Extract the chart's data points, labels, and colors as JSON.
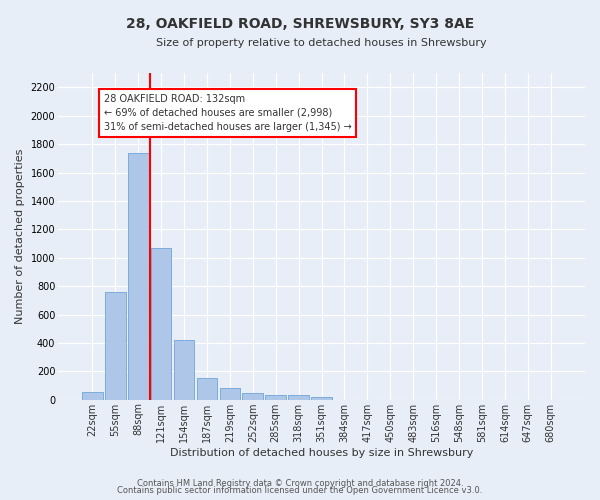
{
  "title": "28, OAKFIELD ROAD, SHREWSBURY, SY3 8AE",
  "subtitle": "Size of property relative to detached houses in Shrewsbury",
  "xlabel": "Distribution of detached houses by size in Shrewsbury",
  "ylabel": "Number of detached properties",
  "footnote1": "Contains HM Land Registry data © Crown copyright and database right 2024.",
  "footnote2": "Contains public sector information licensed under the Open Government Licence v3.0.",
  "bin_labels": [
    "22sqm",
    "55sqm",
    "88sqm",
    "121sqm",
    "154sqm",
    "187sqm",
    "219sqm",
    "252sqm",
    "285sqm",
    "318sqm",
    "351sqm",
    "384sqm",
    "417sqm",
    "450sqm",
    "483sqm",
    "516sqm",
    "548sqm",
    "581sqm",
    "614sqm",
    "647sqm",
    "680sqm"
  ],
  "bar_values": [
    55,
    760,
    1740,
    1070,
    420,
    155,
    80,
    50,
    35,
    30,
    20,
    0,
    0,
    0,
    0,
    0,
    0,
    0,
    0,
    0,
    0
  ],
  "bar_color": "#aec6e8",
  "bar_edgecolor": "#5b9bd5",
  "background_color": "#e8eef7",
  "grid_color": "#ffffff",
  "vline_color": "red",
  "annotation_line1": "28 OAKFIELD ROAD: 132sqm",
  "annotation_line2": "← 69% of detached houses are smaller (2,998)",
  "annotation_line3": "31% of semi-detached houses are larger (1,345) →",
  "annotation_box_edgecolor": "red",
  "ylim": [
    0,
    2300
  ],
  "yticks": [
    0,
    200,
    400,
    600,
    800,
    1000,
    1200,
    1400,
    1600,
    1800,
    2000,
    2200
  ],
  "property_bin_index": 3,
  "title_fontsize": 10,
  "subtitle_fontsize": 8,
  "ylabel_fontsize": 8,
  "xlabel_fontsize": 8,
  "tick_fontsize": 7,
  "annotation_fontsize": 7,
  "footnote_fontsize": 6
}
